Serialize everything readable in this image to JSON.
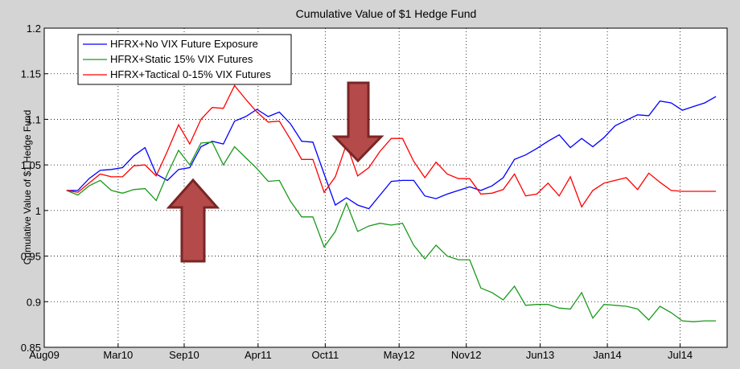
{
  "chart_data": {
    "type": "line",
    "title": "Cumulative Value of $1 Hedge Fund",
    "y_label": "Cumulative Value of $1 Hedge Fund",
    "x": [
      2,
      3,
      4,
      5,
      6,
      7,
      8,
      9,
      10,
      11,
      12,
      13,
      14,
      15,
      16,
      17,
      18,
      19,
      20,
      21,
      22,
      23,
      24,
      25,
      26,
      27,
      28,
      29,
      30,
      31,
      32,
      33,
      34,
      35,
      36,
      37,
      38,
      39,
      40,
      41,
      42,
      43,
      44,
      45,
      46,
      47,
      48,
      49,
      50,
      51,
      52,
      53,
      54,
      55,
      56,
      57,
      58,
      59,
      60
    ],
    "series": [
      {
        "name": "HFRX+No VIX Future Exposure",
        "color": "#0000ff",
        "values": [
          1.022,
          1.022,
          1.035,
          1.044,
          1.045,
          1.047,
          1.06,
          1.069,
          1.04,
          1.033,
          1.045,
          1.047,
          1.07,
          1.076,
          1.073,
          1.098,
          1.103,
          1.111,
          1.103,
          1.108,
          1.095,
          1.076,
          1.075,
          1.04,
          1.006,
          1.014,
          1.006,
          1.002,
          1.017,
          1.032,
          1.033,
          1.033,
          1.016,
          1.013,
          1.018,
          1.022,
          1.026,
          1.022,
          1.027,
          1.036,
          1.056,
          1.061,
          1.068,
          1.076,
          1.083,
          1.069,
          1.079,
          1.07,
          1.08,
          1.093,
          1.099,
          1.105,
          1.104,
          1.12,
          1.118,
          1.11,
          1.114,
          1.118,
          1.125
        ]
      },
      {
        "name": "HFRX+Static 15% VIX Futures",
        "color": "#1a9a1a",
        "values": [
          1.022,
          1.017,
          1.027,
          1.033,
          1.022,
          1.019,
          1.023,
          1.024,
          1.011,
          1.04,
          1.066,
          1.05,
          1.074,
          1.075,
          1.05,
          1.07,
          1.058,
          1.046,
          1.032,
          1.033,
          1.01,
          0.993,
          0.993,
          0.96,
          0.977,
          1.008,
          0.977,
          0.983,
          0.986,
          0.984,
          0.986,
          0.962,
          0.947,
          0.962,
          0.95,
          0.946,
          0.946,
          0.915,
          0.91,
          0.902,
          0.917,
          0.896,
          0.897,
          0.897,
          0.893,
          0.892,
          0.91,
          0.882,
          0.897,
          0.896,
          0.895,
          0.892,
          0.88,
          0.895,
          0.888,
          0.879,
          0.878,
          0.879,
          0.879
        ]
      },
      {
        "name": "HFRX+Tactical 0-15% VIX Futures",
        "color": "#ff0000",
        "values": [
          1.022,
          1.02,
          1.03,
          1.04,
          1.037,
          1.037,
          1.049,
          1.05,
          1.038,
          1.065,
          1.094,
          1.073,
          1.1,
          1.113,
          1.112,
          1.137,
          1.122,
          1.108,
          1.097,
          1.098,
          1.078,
          1.056,
          1.056,
          1.02,
          1.037,
          1.073,
          1.038,
          1.047,
          1.065,
          1.079,
          1.079,
          1.054,
          1.036,
          1.053,
          1.04,
          1.035,
          1.035,
          1.018,
          1.019,
          1.023,
          1.04,
          1.016,
          1.018,
          1.03,
          1.016,
          1.037,
          1.004,
          1.022,
          1.03,
          1.033,
          1.036,
          1.023,
          1.041,
          1.031,
          1.022,
          1.021,
          1.021,
          1.021,
          1.021
        ]
      }
    ],
    "xlim": [
      0,
      61
    ],
    "xticks": [
      {
        "value": 0,
        "label": "Aug09"
      },
      {
        "value": 6.6,
        "label": "Mar10"
      },
      {
        "value": 12.5,
        "label": "Sep10"
      },
      {
        "value": 19.1,
        "label": "Apr11"
      },
      {
        "value": 25.1,
        "label": "Oct11"
      },
      {
        "value": 31.7,
        "label": "May12"
      },
      {
        "value": 37.7,
        "label": "Nov12"
      },
      {
        "value": 44.3,
        "label": "Jun13"
      },
      {
        "value": 50.3,
        "label": "Jan14"
      },
      {
        "value": 56.8,
        "label": "Jul14"
      }
    ],
    "ylim": [
      0.85,
      1.2
    ],
    "yticks": [
      0.85,
      0.9,
      0.95,
      1,
      1.05,
      1.1,
      1.15,
      1.2
    ],
    "grid": true,
    "legend": "upper left"
  }
}
